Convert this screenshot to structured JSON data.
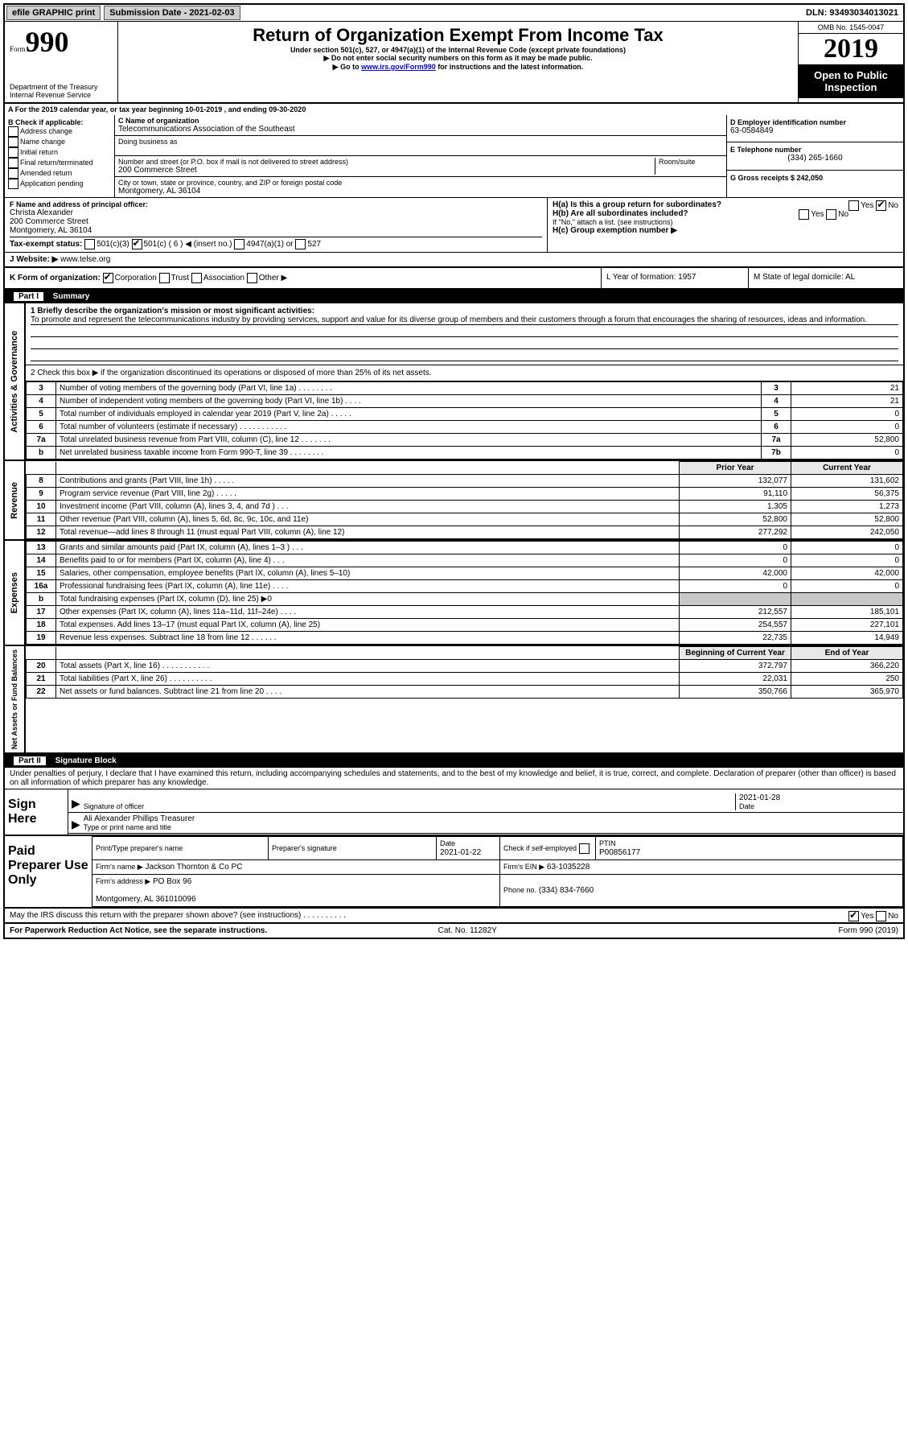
{
  "topbar": {
    "efile": "efile GRAPHIC print",
    "submission_label": "Submission Date - 2021-02-03",
    "dln": "DLN: 93493034013021"
  },
  "header": {
    "form": "Form",
    "form_no": "990",
    "dept": "Department of the Treasury\nInternal Revenue Service",
    "title": "Return of Organization Exempt From Income Tax",
    "sub1": "Under section 501(c), 527, or 4947(a)(1) of the Internal Revenue Code (except private foundations)",
    "sub2": "▶ Do not enter social security numbers on this form as it may be made public.",
    "sub3_pre": "▶ Go to ",
    "sub3_link": "www.irs.gov/Form990",
    "sub3_post": " for instructions and the latest information.",
    "omb": "OMB No. 1545-0047",
    "year": "2019",
    "open": "Open to Public Inspection"
  },
  "rowA": "A For the 2019 calendar year, or tax year beginning 10-01-2019    , and ending 09-30-2020",
  "boxB": {
    "b_label": "B Check if applicable:",
    "opts": [
      "Address change",
      "Name change",
      "Initial return",
      "Final return/terminated",
      "Amended return",
      "Application pending"
    ],
    "c_label": "C Name of organization",
    "org_name": "Telecommunications Association of the Southeast",
    "dba": "Doing business as",
    "addr_label": "Number and street (or P.O. box if mail is not delivered to street address)",
    "room": "Room/suite",
    "street": "200 Commerce Street",
    "city_label": "City or town, state or province, country, and ZIP or foreign postal code",
    "city": "Montgomery, AL  36104",
    "d_label": "D Employer identification number",
    "ein": "63-0584849",
    "e_label": "E Telephone number",
    "phone": "(334) 265-1660",
    "g_label": "G Gross receipts $ 242,050"
  },
  "secF": {
    "f_label": "F  Name and address of principal officer:",
    "officer": "Christa Alexander\n200 Commerce Street\nMontgomery, AL  36104",
    "ha": "H(a)  Is this a group return for subordinates?",
    "hb": "H(b)  Are all subordinates included?",
    "hb_note": "If \"No,\" attach a list. (see instructions)",
    "hc": "H(c)  Group exemption number ▶",
    "yn_yes": "Yes",
    "yn_no": "No"
  },
  "taxstatus": {
    "label": "Tax-exempt status:",
    "a": "501(c)(3)",
    "b": "501(c) ( 6 ) ◀ (insert no.)",
    "c": "4947(a)(1) or",
    "d": "527"
  },
  "website": {
    "label": "J   Website: ▶",
    "value": "www.telse.org"
  },
  "rowK": {
    "k": "K Form of organization:",
    "a": "Corporation",
    "b": "Trust",
    "c": "Association",
    "d": "Other ▶",
    "l": "L Year of formation: 1957",
    "m": "M State of legal domicile: AL"
  },
  "part1": {
    "hdr_no": "Part I",
    "hdr_title": "Summary",
    "line1_label": "1   Briefly describe the organization's mission or most significant activities:",
    "mission": "To promote and represent the telecommunications industry by providing services, support and value for its diverse group of members and their customers through a forum that encourages the sharing of resources, ideas and information.",
    "line2": "2   Check this box ▶       if the organization discontinued its operations or disposed of more than 25% of its net assets.",
    "rows_ag": [
      {
        "n": "3",
        "d": "Number of voting members of the governing body (Part VI, line 1a)  .    .    .    .    .    .    .    .",
        "b": "3",
        "v": "21"
      },
      {
        "n": "4",
        "d": "Number of independent voting members of the governing body (Part VI, line 1b)   .    .    .    .",
        "b": "4",
        "v": "21"
      },
      {
        "n": "5",
        "d": "Total number of individuals employed in calendar year 2019 (Part V, line 2a)   .    .    .    .    .",
        "b": "5",
        "v": "0"
      },
      {
        "n": "6",
        "d": "Total number of volunteers (estimate if necessary)    .    .    .    .    .    .    .    .    .    .    .",
        "b": "6",
        "v": "0"
      },
      {
        "n": "7a",
        "d": "Total unrelated business revenue from Part VIII, column (C), line 12   .    .    .    .    .    .    .",
        "b": "7a",
        "v": "52,800"
      },
      {
        "n": "b",
        "d": "Net unrelated business taxable income from Form 990-T, line 39   .    .    .    .    .    .    .    .",
        "b": "7b",
        "v": "0"
      }
    ],
    "hdr_prior": "Prior Year",
    "hdr_curr": "Current Year",
    "rows_rev": [
      {
        "n": "8",
        "d": "Contributions and grants (Part VIII, line 1h)   .    .    .    .    .",
        "p": "132,077",
        "c": "131,602"
      },
      {
        "n": "9",
        "d": "Program service revenue (Part VIII, line 2g)   .    .    .    .    .",
        "p": "91,110",
        "c": "56,375"
      },
      {
        "n": "10",
        "d": "Investment income (Part VIII, column (A), lines 3, 4, and 7d )   .    .    .",
        "p": "1,305",
        "c": "1,273"
      },
      {
        "n": "11",
        "d": "Other revenue (Part VIII, column (A), lines 5, 6d, 8c, 9c, 10c, and 11e)",
        "p": "52,800",
        "c": "52,800"
      },
      {
        "n": "12",
        "d": "Total revenue—add lines 8 through 11 (must equal Part VIII, column (A), line 12)",
        "p": "277,292",
        "c": "242,050"
      }
    ],
    "rows_exp": [
      {
        "n": "13",
        "d": "Grants and similar amounts paid (Part IX, column (A), lines 1–3 )   .    .    .",
        "p": "0",
        "c": "0"
      },
      {
        "n": "14",
        "d": "Benefits paid to or for members (Part IX, column (A), line 4)   .    .    .",
        "p": "0",
        "c": "0"
      },
      {
        "n": "15",
        "d": "Salaries, other compensation, employee benefits (Part IX, column (A), lines 5–10)",
        "p": "42,000",
        "c": "42,000"
      },
      {
        "n": "16a",
        "d": "Professional fundraising fees (Part IX, column (A), line 11e)   .    .    .    .",
        "p": "0",
        "c": "0"
      },
      {
        "n": "b",
        "d": "Total fundraising expenses (Part IX, column (D), line 25) ▶0",
        "p": "",
        "c": "",
        "shade": true
      },
      {
        "n": "17",
        "d": "Other expenses (Part IX, column (A), lines 11a–11d, 11f–24e)   .    .    .    .",
        "p": "212,557",
        "c": "185,101"
      },
      {
        "n": "18",
        "d": "Total expenses. Add lines 13–17 (must equal Part IX, column (A), line 25)",
        "p": "254,557",
        "c": "227,101"
      },
      {
        "n": "19",
        "d": "Revenue less expenses. Subtract line 18 from line 12  .    .    .    .    .    .",
        "p": "22,735",
        "c": "14,949"
      }
    ],
    "hdr_begin": "Beginning of Current Year",
    "hdr_end": "End of Year",
    "rows_na": [
      {
        "n": "20",
        "d": "Total assets (Part X, line 16)   .    .    .    .    .    .    .    .    .    .    .",
        "p": "372,797",
        "c": "366,220"
      },
      {
        "n": "21",
        "d": "Total liabilities (Part X, line 26)   .    .    .    .    .    .    .    .    .    .",
        "p": "22,031",
        "c": "250"
      },
      {
        "n": "22",
        "d": "Net assets or fund balances. Subtract line 21 from line 20    .    .    .    .",
        "p": "350,766",
        "c": "365,970"
      }
    ],
    "side_ag": "Activities & Governance",
    "side_rev": "Revenue",
    "side_exp": "Expenses",
    "side_na": "Net Assets or Fund Balances"
  },
  "part2": {
    "hdr_no": "Part II",
    "hdr_title": "Signature Block",
    "decl": "Under penalties of perjury, I declare that I have examined this return, including accompanying schedules and statements, and to the best of my knowledge and belief, it is true, correct, and complete. Declaration of preparer (other than officer) is based on all information of which preparer has any knowledge.",
    "sign_here": "Sign Here",
    "sig_officer": "Signature of officer",
    "sig_date": "2021-01-28",
    "sig_date_lbl": "Date",
    "name_title": "Ali Alexander Phillips Treasurer",
    "name_title_lbl": "Type or print name and title",
    "paid": "Paid Preparer Use Only",
    "pp_name": "Print/Type preparer's name",
    "pp_sig": "Preparer's signature",
    "pp_date_lbl": "Date",
    "pp_date": "2021-01-22",
    "pp_check": "Check       if self-employed",
    "pp_ptin_lbl": "PTIN",
    "pp_ptin": "P00856177",
    "firm_name_lbl": "Firm's name     ▶",
    "firm_name": "Jackson Thornton & Co PC",
    "firm_ein_lbl": "Firm's EIN ▶",
    "firm_ein": "63-1035228",
    "firm_addr_lbl": "Firm's address ▶",
    "firm_addr": "PO Box 96\n\nMontgomery, AL  361010096",
    "firm_phone_lbl": "Phone no.",
    "firm_phone": "(334) 834-7660",
    "discuss": "May the IRS discuss this return with the preparer shown above? (see instructions)    .    .    .    .    .    .    .    .    .    .",
    "footer_l": "For Paperwork Reduction Act Notice, see the separate instructions.",
    "footer_m": "Cat. No. 11282Y",
    "footer_r": "Form 990 (2019)"
  }
}
